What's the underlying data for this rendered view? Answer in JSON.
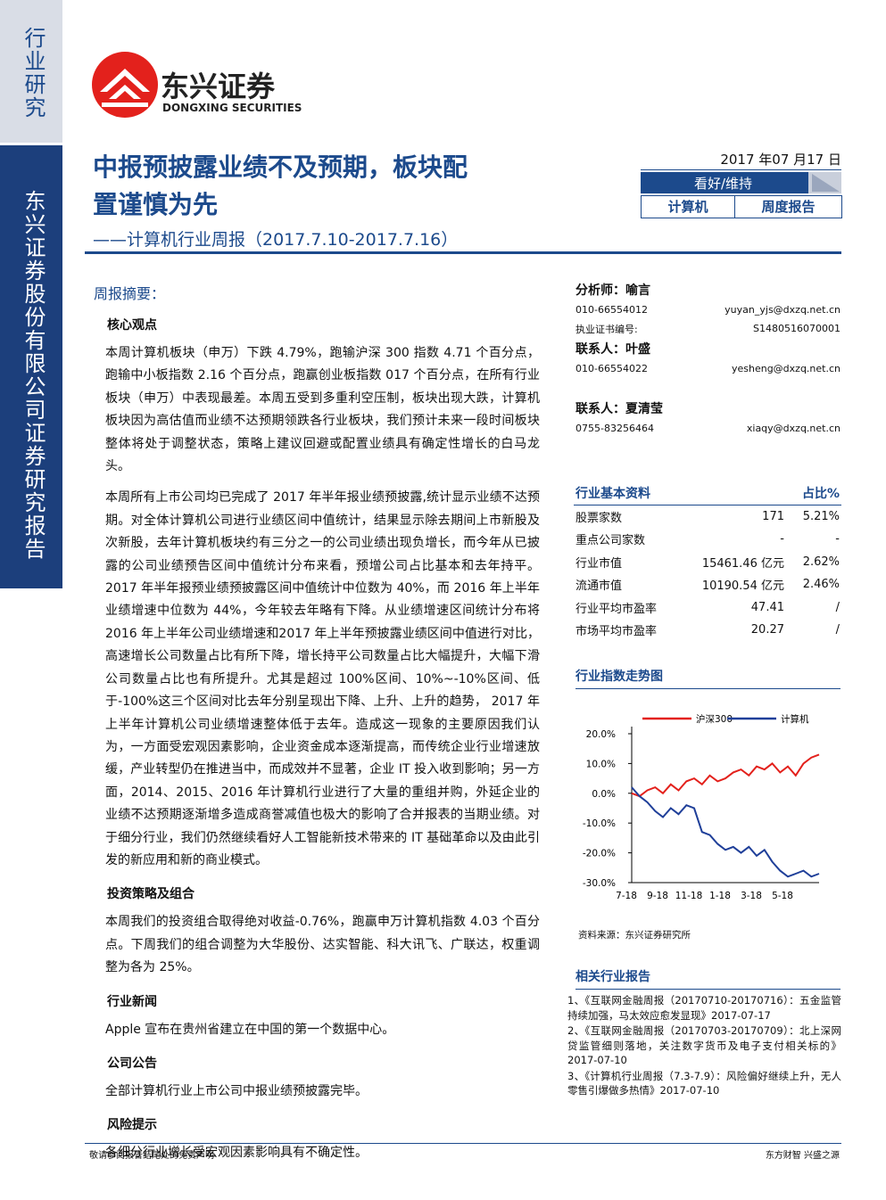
{
  "sidebar": {
    "category": "行业研究",
    "company": "东兴证券股份有限公司证券研究报告"
  },
  "logo": {
    "name_cn": "东兴证券",
    "name_en": "DONGXING SECURITIES"
  },
  "header": {
    "title_line1": "中报预披露业绩不及预期，板块配",
    "title_line2": "置谨慎为先",
    "subtitle": "——计算机行业周报（2017.7.10-2017.7.16）",
    "date": "2017 年07 月17 日",
    "rating": "看好/维持",
    "sector": "计算机",
    "report_type": "周度报告"
  },
  "summary": {
    "heading": "周报摘要：",
    "sections": [
      {
        "title": "核心观点",
        "paragraphs": [
          "本周计算机板块（申万）下跌 4.79%，跑输沪深 300 指数 4.71 个百分点，跑输中小板指数 2.16 个百分点，跑赢创业板指数 017 个百分点，在所有行业板块（申万）中表现最差。本周五受到多重利空压制，板块出现大跌，计算机板块因为高估值而业绩不达预期领跌各行业板块，我们预计未来一段时间板块整体将处于调整状态，策略上建议回避或配置业绩具有确定性增长的白马龙头。",
          "本周所有上市公司均已完成了 2017 年半年报业绩预披露,统计显示业绩不达预期。对全体计算机公司进行业绩区间中值统计，结果显示除去期间上市新股及次新股，去年计算机板块约有三分之一的公司业绩出现负增长，而今年从已披露的公司业绩预告区间中值统计分布来看，预增公司占比基本和去年持平。2017 年半年报预业绩预披露区间中值统计中位数为 40%，而 2016 年上半年业绩增速中位数为 44%，今年较去年略有下降。从业绩增速区间统计分布将2016 年上半年公司业绩增速和2017 年上半年预披露业绩区间中值进行对比，高速增长公司数量占比有所下降，增长持平公司数量占比大幅提升，大幅下滑公司数量占比也有所提升。尤其是超过 100%区间、10%~-10%区间、低于-100%这三个区间对比去年分别呈现出下降、上升、上升的趋势， 2017 年上半年计算机公司业绩增速整体低于去年。造成这一现象的主要原因我们认为，一方面受宏观因素影响，企业资金成本逐渐提高，而传统企业行业增速放缓，产业转型仍在推进当中，而成效并不显著，企业 IT 投入收到影响；另一方面，2014、2015、2016 年计算机行业进行了大量的重组并购，外延企业的业绩不达预期逐渐增多造成商誉减值也极大的影响了合并报表的当期业绩。对于细分行业，我们仍然继续看好人工智能新技术带来的 IT 基础革命以及由此引发的新应用和新的商业模式。"
        ]
      },
      {
        "title": "投资策略及组合",
        "paragraphs": [
          "本周我们的投资组合取得绝对收益-0.76%，跑赢申万计算机指数 4.03 个百分点。下周我们的组合调整为大华股份、达实智能、科大讯飞、广联达，权重调整为各为 25%。"
        ]
      },
      {
        "title": "行业新闻",
        "paragraphs": [
          "Apple 宣布在贵州省建立在中国的第一个数据中心。"
        ]
      },
      {
        "title": "公司公告",
        "paragraphs": [
          "全部计算机行业上市公司中报业绩预披露完毕。"
        ]
      },
      {
        "title": "风险提示",
        "paragraphs": [
          "各细分行业增长受宏观因素影响具有不确定性。"
        ]
      }
    ]
  },
  "analysts": [
    {
      "role": "分析师：",
      "name": "喻言",
      "phone": "010-66554012",
      "email": "yuyan_yjs@dxzq.net.cn",
      "cert_label": "执业证书编号:",
      "cert": "S1480516070001"
    },
    {
      "role": "联系人：",
      "name": "叶盛",
      "phone": "010-66554022",
      "email": "yesheng@dxzq.net.cn"
    },
    {
      "role": "联系人：",
      "name": "夏清莹",
      "phone": "0755-83256464",
      "email": "xiaqy@dxzq.net.cn"
    }
  ],
  "basics_table": {
    "header": [
      "行业基本资料",
      "占比%"
    ],
    "rows": [
      [
        "股票家数",
        "171",
        "5.21%"
      ],
      [
        "重点公司家数",
        "-",
        "-"
      ],
      [
        "行业市值",
        "15461.46 亿元",
        "2.62%"
      ],
      [
        "流通市值",
        "10190.54 亿元",
        "2.46%"
      ],
      [
        "行业平均市盈率",
        "47.41",
        "/"
      ],
      [
        "市场平均市盈率",
        "20.27",
        "/"
      ]
    ]
  },
  "index_chart": {
    "heading": "行业指数走势图",
    "source": "资料来源：东兴证券研究所"
  },
  "chart_data": {
    "type": "line",
    "categories": [
      "7-18",
      null,
      null,
      null,
      "9-18",
      null,
      null,
      null,
      "11-18",
      null,
      null,
      null,
      "1-18",
      null,
      null,
      null,
      "3-18",
      null,
      null,
      null,
      "5-18",
      null,
      null,
      null,
      null
    ],
    "series": [
      {
        "name": "沪深300",
        "color": "#e3211c",
        "values": [
          0,
          -1,
          1,
          2,
          0,
          3,
          1,
          4,
          5,
          3,
          6,
          4,
          5,
          7,
          8,
          6,
          9,
          8,
          10,
          7,
          9,
          6,
          10,
          12,
          13
        ]
      },
      {
        "name": "计算机",
        "color": "#1f3f99",
        "values": [
          2,
          -1,
          -3,
          -6,
          -8,
          -5,
          -7,
          -4,
          -5,
          -13,
          -14,
          -17,
          -19,
          -18,
          -20,
          -18,
          -21,
          -19,
          -23,
          -26,
          -28,
          -27,
          -26,
          -28,
          -27
        ]
      }
    ],
    "ylim": [
      -30,
      20
    ],
    "yticks": [
      {
        "value": 20,
        "label": "20.0%"
      },
      {
        "value": 10,
        "label": "10.0%"
      },
      {
        "value": 0,
        "label": "0.0%"
      },
      {
        "value": -10,
        "label": "-10.0%"
      },
      {
        "value": -20,
        "label": "-20.0%"
      },
      {
        "value": -30,
        "label": "-30.0%"
      }
    ],
    "grid": false
  },
  "related": {
    "heading": "相关行业报告",
    "items": [
      "1、《互联网金融周报（20170710-20170716）：五金监管持续加强，马太效应愈发显现》2017-07-17",
      "2、《互联网金融周报（20170703-20170709）：北上深网贷监管细则落地，关注数字货币及电子支付相关标的》2017-07-10",
      "3、《计算机行业周报（7.3-7.9）：风险偏好继续上升，无人零售引爆做多热情》2017-07-10"
    ]
  },
  "footer": {
    "left": "敬请参阅报告结尾处的免责声明",
    "right": "东方财智 兴盛之源"
  }
}
